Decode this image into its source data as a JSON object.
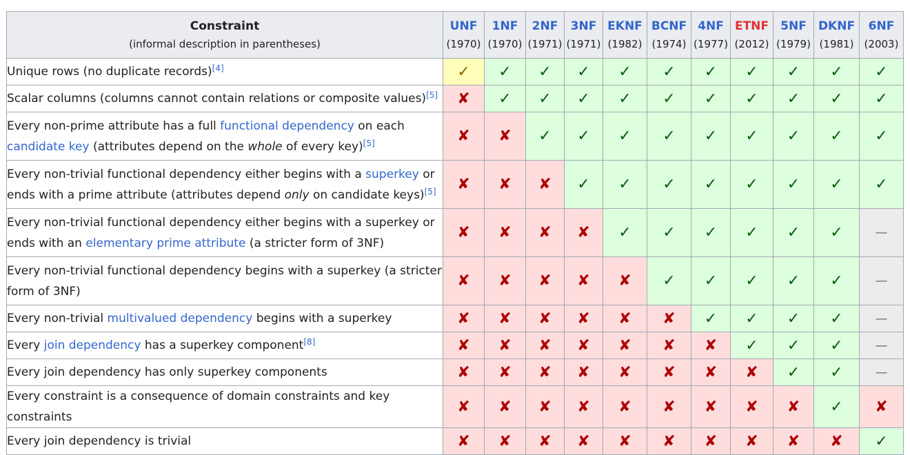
{
  "header": {
    "constraint_title": "Constraint",
    "constraint_subtitle": "(informal description in parentheses)",
    "forms": [
      {
        "name": "UNF",
        "year": "(1970)",
        "color": "#3366cc"
      },
      {
        "name": "1NF",
        "year": "(1970)",
        "color": "#3366cc"
      },
      {
        "name": "2NF",
        "year": "(1971)",
        "color": "#3366cc"
      },
      {
        "name": "3NF",
        "year": "(1971)",
        "color": "#3366cc"
      },
      {
        "name": "EKNF",
        "year": "(1982)",
        "color": "#3366cc"
      },
      {
        "name": "BCNF",
        "year": "(1974)",
        "color": "#3366cc"
      },
      {
        "name": "4NF",
        "year": "(1977)",
        "color": "#3366cc"
      },
      {
        "name": "ETNF",
        "year": "(2012)",
        "color": "#dd3333"
      },
      {
        "name": "5NF",
        "year": "(1979)",
        "color": "#3366cc"
      },
      {
        "name": "DKNF",
        "year": "(1981)",
        "color": "#3366cc"
      },
      {
        "name": "6NF",
        "year": "(2003)",
        "color": "#3366cc"
      }
    ]
  },
  "symbols": {
    "yes": "✓",
    "no": "✘",
    "na": "—",
    "partial": "✓"
  },
  "rows": [
    {
      "parts": [
        [
          "t",
          "Unique rows (no duplicate records)"
        ],
        [
          "r",
          "[4]"
        ]
      ],
      "cells": [
        "partial",
        "yes",
        "yes",
        "yes",
        "yes",
        "yes",
        "yes",
        "yes",
        "yes",
        "yes",
        "yes"
      ]
    },
    {
      "parts": [
        [
          "t",
          "Scalar columns (columns cannot contain relations or composite values)"
        ],
        [
          "r",
          "[5]"
        ]
      ],
      "cells": [
        "no",
        "yes",
        "yes",
        "yes",
        "yes",
        "yes",
        "yes",
        "yes",
        "yes",
        "yes",
        "yes"
      ]
    },
    {
      "parts": [
        [
          "t",
          "Every non-prime attribute has a full "
        ],
        [
          "l",
          "functional dependency"
        ],
        [
          "t",
          " on each "
        ],
        [
          "l",
          "candidate key"
        ],
        [
          "t",
          " (attributes depend on the "
        ],
        [
          "i",
          "whole"
        ],
        [
          "t",
          " of every key)"
        ],
        [
          "r",
          "[5]"
        ]
      ],
      "cells": [
        "no",
        "no",
        "yes",
        "yes",
        "yes",
        "yes",
        "yes",
        "yes",
        "yes",
        "yes",
        "yes"
      ]
    },
    {
      "parts": [
        [
          "t",
          "Every non-trivial functional dependency either begins with a "
        ],
        [
          "l",
          "superkey"
        ],
        [
          "t",
          " or ends with a prime attribute (attributes depend "
        ],
        [
          "i",
          "only"
        ],
        [
          "t",
          " on candidate keys)"
        ],
        [
          "r",
          "[5]"
        ]
      ],
      "cells": [
        "no",
        "no",
        "no",
        "yes",
        "yes",
        "yes",
        "yes",
        "yes",
        "yes",
        "yes",
        "yes"
      ]
    },
    {
      "parts": [
        [
          "t",
          "Every non-trivial functional dependency either begins with a superkey or ends with an "
        ],
        [
          "l",
          "elementary prime attribute"
        ],
        [
          "t",
          " (a stricter form of 3NF)"
        ]
      ],
      "cells": [
        "no",
        "no",
        "no",
        "no",
        "yes",
        "yes",
        "yes",
        "yes",
        "yes",
        "yes",
        "na"
      ]
    },
    {
      "parts": [
        [
          "t",
          "Every non-trivial functional dependency begins with a superkey (a stricter form of 3NF)"
        ]
      ],
      "cells": [
        "no",
        "no",
        "no",
        "no",
        "no",
        "yes",
        "yes",
        "yes",
        "yes",
        "yes",
        "na"
      ]
    },
    {
      "parts": [
        [
          "t",
          "Every non-trivial "
        ],
        [
          "l",
          "multivalued dependency"
        ],
        [
          "t",
          " begins with a superkey"
        ]
      ],
      "cells": [
        "no",
        "no",
        "no",
        "no",
        "no",
        "no",
        "yes",
        "yes",
        "yes",
        "yes",
        "na"
      ]
    },
    {
      "parts": [
        [
          "t",
          "Every "
        ],
        [
          "l",
          "join dependency"
        ],
        [
          "t",
          " has a superkey component"
        ],
        [
          "r",
          "[8]"
        ]
      ],
      "cells": [
        "no",
        "no",
        "no",
        "no",
        "no",
        "no",
        "no",
        "yes",
        "yes",
        "yes",
        "na"
      ]
    },
    {
      "parts": [
        [
          "t",
          "Every join dependency has only superkey components"
        ]
      ],
      "cells": [
        "no",
        "no",
        "no",
        "no",
        "no",
        "no",
        "no",
        "no",
        "yes",
        "yes",
        "na"
      ]
    },
    {
      "parts": [
        [
          "t",
          "Every constraint is a consequence of domain constraints and key constraints"
        ]
      ],
      "cells": [
        "no",
        "no",
        "no",
        "no",
        "no",
        "no",
        "no",
        "no",
        "no",
        "yes",
        "no"
      ]
    },
    {
      "parts": [
        [
          "t",
          "Every join dependency is trivial"
        ]
      ],
      "cells": [
        "no",
        "no",
        "no",
        "no",
        "no",
        "no",
        "no",
        "no",
        "no",
        "no",
        "yes"
      ]
    }
  ]
}
